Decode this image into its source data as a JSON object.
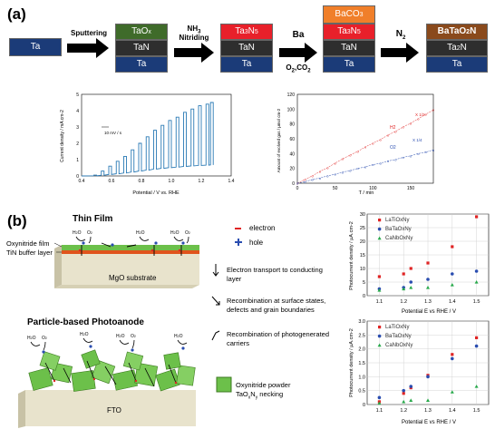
{
  "panel_a": {
    "label": "(a)",
    "stack1": {
      "base": "Ta"
    },
    "arrow1_label": "Sputtering",
    "stack2": {
      "top": "TaOx",
      "mid": "TaN",
      "base": "Ta"
    },
    "arrow2_label_1": "NH3",
    "arrow2_label_2": "Nitriding",
    "stack3": {
      "top": "Ta3N5",
      "mid": "TaN",
      "base": "Ta"
    },
    "arrow3_label_1": "Ba",
    "arrow3_label_2": "O2,CO2",
    "stack4": {
      "top": "BaCO3",
      "top2": "Ta3N5",
      "mid": "TaN",
      "base": "Ta"
    },
    "arrow4_label": "N2",
    "stack5": {
      "top": "BaTaO2N",
      "mid": "Ta2N",
      "base": "Ta"
    },
    "colors": {
      "ta": "#1b3b78",
      "tan": "#2e2e2e",
      "taox": "#3f6b2a",
      "ta3n5": "#e8202a",
      "baco3": "#f07f2a",
      "batao2n": "#8a4a1c"
    }
  },
  "chart_left": {
    "xlabel": "Potential / V vs. RHE",
    "ylabel": "Current density / mA cm-2",
    "scan_note": "10 mV / s",
    "xticks": [
      "0.4",
      "0.6",
      "0.8",
      "1.0",
      "1.2",
      "1.4"
    ],
    "yticks": [
      "0",
      "1",
      "2",
      "3",
      "4",
      "5"
    ]
  },
  "chart_right": {
    "xlabel": "T / min",
    "ylabel": "Amount of evolved gas / µmol cm-2",
    "h2_label": "H2",
    "o2_label": "O2",
    "h2_ratio": "X 1/2",
    "o2_ratio": "X 1/4",
    "xticks": [
      "0",
      "50",
      "100",
      "150"
    ],
    "yticks": [
      "0",
      "20",
      "40",
      "60",
      "80",
      "100",
      "120"
    ]
  },
  "panel_b": {
    "label": "(b)",
    "thin_film_title": "Thin Film",
    "film_label_1": "Oxynitride film",
    "film_label_2": "TiN buffer layer",
    "substrate": "MgO substrate",
    "particle_title": "Particle-based Photoanode",
    "fto": "FTO",
    "legend_electron": "electron",
    "legend_hole": "hole",
    "desc1_1": "Electron transport to conducting",
    "desc1_2": "layer",
    "desc2_1": "Recombination at surface states,",
    "desc2_2": "defects and grain boundaries",
    "desc3_1": "Recombination of photogenerated",
    "desc3_2": "carriers",
    "powder_1": "Oxynitride powder",
    "powder_2": "TaOxNy necking",
    "h2o": "H2O",
    "o2": "O2"
  },
  "chart_data": [
    {
      "type": "line",
      "title": "",
      "xlabel": "Potential / V vs. RHE",
      "ylabel": "Current density / mA cm-2",
      "xlim": [
        0.4,
        1.4
      ],
      "ylim": [
        0,
        5
      ],
      "series": [
        {
          "name": "",
          "x": [
            0.5,
            0.55,
            0.6,
            0.65,
            0.7,
            0.75,
            0.8,
            0.85,
            0.9,
            0.95,
            1.0,
            1.05,
            1.1,
            1.15,
            1.2,
            1.25,
            1.28
          ],
          "values": [
            0.05,
            0.3,
            0.6,
            0.9,
            1.2,
            1.6,
            2.0,
            2.4,
            2.8,
            3.1,
            3.4,
            3.6,
            3.9,
            4.1,
            4.3,
            4.4,
            4.5
          ]
        }
      ]
    },
    {
      "type": "scatter",
      "title": "",
      "xlabel": "T / min",
      "ylabel": "Amount of evolved gas / µmol cm-2",
      "xlim": [
        0,
        180
      ],
      "ylim": [
        0,
        120
      ],
      "series": [
        {
          "name": "H2",
          "x": [
            0,
            10,
            20,
            30,
            40,
            50,
            60,
            70,
            80,
            90,
            100,
            110,
            120,
            130,
            140,
            150,
            160,
            170,
            180
          ],
          "values": [
            0,
            5,
            10,
            16,
            21,
            27,
            33,
            38,
            43,
            49,
            54,
            59,
            65,
            70,
            76,
            81,
            87,
            93,
            99
          ]
        },
        {
          "name": "O2",
          "x": [
            0,
            10,
            20,
            30,
            40,
            50,
            60,
            70,
            80,
            90,
            100,
            110,
            120,
            130,
            140,
            150,
            160,
            170,
            180
          ],
          "values": [
            0,
            2,
            5,
            7,
            10,
            12,
            15,
            17,
            20,
            22,
            25,
            27,
            30,
            32,
            35,
            37,
            40,
            42,
            45
          ]
        }
      ]
    },
    {
      "type": "scatter",
      "title": "",
      "xlabel": "Potential E vs RHE / V",
      "ylabel": "Photocurrent density / µA.cm-2",
      "xlim": [
        1.05,
        1.55
      ],
      "ylim": [
        0,
        30
      ],
      "xticks": [
        "1.1",
        "1.2",
        "1.3",
        "1.4",
        "1.5"
      ],
      "yticks": [
        "0",
        "5",
        "10",
        "15",
        "20",
        "25",
        "30"
      ],
      "series": [
        {
          "name": "LaTiOxNy",
          "color": "#e02424",
          "x": [
            1.1,
            1.2,
            1.23,
            1.3,
            1.4,
            1.5
          ],
          "values": [
            7,
            8,
            10,
            12,
            18,
            29
          ]
        },
        {
          "name": "BaTaOxNy",
          "color": "#2a4db0",
          "x": [
            1.1,
            1.2,
            1.23,
            1.3,
            1.4,
            1.5
          ],
          "values": [
            2.5,
            3,
            5,
            6,
            8,
            9
          ]
        },
        {
          "name": "CaNbOxNy",
          "color": "#27a94a",
          "x": [
            1.1,
            1.2,
            1.23,
            1.3,
            1.4,
            1.5
          ],
          "values": [
            2,
            2.5,
            3,
            3,
            4,
            5
          ]
        }
      ]
    },
    {
      "type": "scatter",
      "title": "",
      "xlabel": "Potential E vs RHE / V",
      "ylabel": "Photocurrent density / µA.cm-2",
      "xlim": [
        1.05,
        1.55
      ],
      "ylim": [
        0,
        3.0
      ],
      "xticks": [
        "1.1",
        "1.2",
        "1.3",
        "1.4",
        "1.5"
      ],
      "yticks": [
        "0",
        "0.5",
        "1.0",
        "1.5",
        "2.0",
        "2.5",
        "3.0"
      ],
      "series": [
        {
          "name": "LaTiOxNy",
          "color": "#e02424",
          "x": [
            1.1,
            1.2,
            1.23,
            1.3,
            1.4,
            1.5
          ],
          "values": [
            0.1,
            0.4,
            0.6,
            1.05,
            1.8,
            2.4
          ]
        },
        {
          "name": "BaTaOxNy",
          "color": "#2a4db0",
          "x": [
            1.1,
            1.2,
            1.23,
            1.3,
            1.4,
            1.5
          ],
          "values": [
            0.25,
            0.5,
            0.65,
            1.0,
            1.65,
            2.1
          ]
        },
        {
          "name": "CaNbOxNy",
          "color": "#27a94a",
          "x": [
            1.1,
            1.2,
            1.23,
            1.3,
            1.4,
            1.5
          ],
          "values": [
            0.05,
            0.1,
            0.15,
            0.15,
            0.45,
            0.65
          ]
        }
      ]
    }
  ]
}
